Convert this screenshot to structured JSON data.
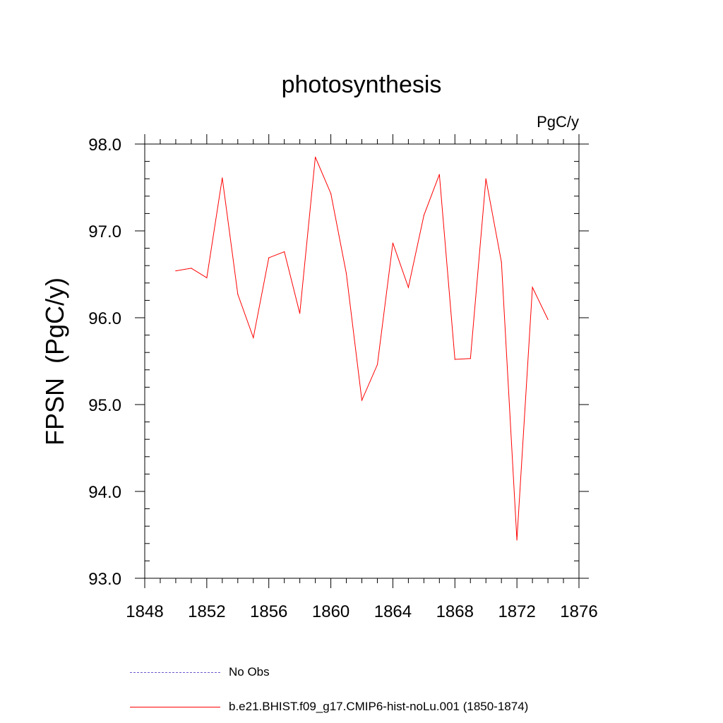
{
  "colors": {
    "model": "#ff0000",
    "obs": "#6a5acd",
    "axis": "#000000"
  },
  "chart_data": {
    "type": "line",
    "title": "photosynthesis",
    "units": "PgC/y",
    "ylabel": "FPSN  (PgC/y)",
    "xlabel": "",
    "xlim": [
      1848,
      1876
    ],
    "ylim": [
      93.0,
      98.0
    ],
    "xticks": [
      1848,
      1852,
      1856,
      1860,
      1864,
      1868,
      1872,
      1876
    ],
    "xtick_labels": [
      "1848",
      "1852",
      "1856",
      "1860",
      "1864",
      "1868",
      "1872",
      "1876"
    ],
    "yticks": [
      93.0,
      94.0,
      95.0,
      96.0,
      97.0,
      98.0
    ],
    "ytick_labels": [
      "93.0",
      "94.0",
      "95.0",
      "96.0",
      "97.0",
      "98.0"
    ],
    "grid": false,
    "legend_position": "bottom",
    "series": [
      {
        "name": "b.e21.BHIST.f09_g17.CMIP6-hist-noLu.001 (1850-1874)",
        "style": "solid",
        "x": [
          1850,
          1851,
          1852,
          1853,
          1854,
          1855,
          1856,
          1857,
          1858,
          1859,
          1860,
          1861,
          1862,
          1863,
          1864,
          1865,
          1866,
          1867,
          1868,
          1869,
          1870,
          1871,
          1872,
          1873,
          1874
        ],
        "values": [
          96.54,
          96.57,
          96.46,
          97.61,
          96.27,
          95.77,
          96.69,
          96.76,
          96.05,
          97.85,
          97.43,
          96.51,
          95.05,
          95.46,
          96.86,
          96.35,
          97.18,
          97.65,
          95.52,
          95.53,
          97.6,
          96.64,
          93.44,
          96.35,
          95.98
        ]
      }
    ],
    "legend": [
      {
        "label": "No Obs",
        "style": "dashed"
      },
      {
        "label": "b.e21.BHIST.f09_g17.CMIP6-hist-noLu.001 (1850-1874)",
        "style": "solid"
      }
    ]
  }
}
